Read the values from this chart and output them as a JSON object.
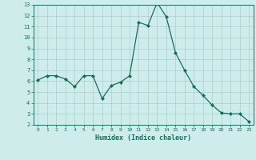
{
  "x": [
    0,
    1,
    2,
    3,
    4,
    5,
    6,
    7,
    8,
    9,
    10,
    11,
    12,
    13,
    14,
    15,
    16,
    17,
    18,
    19,
    20,
    21,
    22,
    23
  ],
  "y": [
    6.1,
    6.5,
    6.5,
    6.2,
    5.5,
    6.5,
    6.5,
    4.4,
    5.6,
    5.9,
    6.5,
    11.4,
    11.1,
    13.2,
    11.9,
    8.6,
    7.0,
    5.5,
    4.7,
    3.8,
    3.1,
    3.0,
    3.0,
    2.3
  ],
  "xlabel": "Humidex (Indice chaleur)",
  "xlim": [
    -0.5,
    23.5
  ],
  "ylim": [
    2,
    13
  ],
  "yticks": [
    2,
    3,
    4,
    5,
    6,
    7,
    8,
    9,
    10,
    11,
    12,
    13
  ],
  "xticks": [
    0,
    1,
    2,
    3,
    4,
    5,
    6,
    7,
    8,
    9,
    10,
    11,
    12,
    13,
    14,
    15,
    16,
    17,
    18,
    19,
    20,
    21,
    22,
    23
  ],
  "line_color": "#1a6b5e",
  "marker": "D",
  "marker_size": 2.0,
  "bg_color": "#ceecea",
  "grid_color": "#aacfcc",
  "spine_color": "#1a6b5e",
  "tick_color": "#1a6b5e",
  "label_color": "#1a6b5e"
}
